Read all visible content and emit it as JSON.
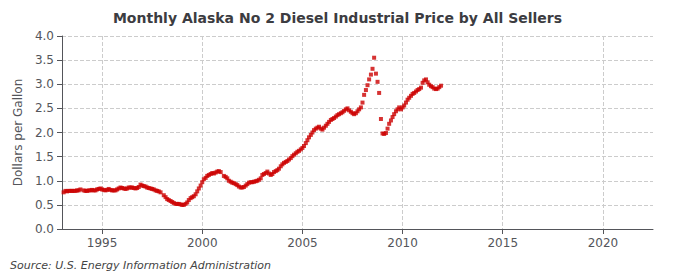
{
  "chart_data": {
    "type": "scatter",
    "title": "Monthly Alaska No 2 Diesel Industrial Price by All Sellers",
    "ylabel": "Dollars per Gallon",
    "annotation": "Source: U.S. Energy Information Administration",
    "color": "#cc0000",
    "marker": "square",
    "grid": true,
    "xlim": [
      1993.0,
      2022.5
    ],
    "xticks": [
      1995,
      2000,
      2005,
      2010,
      2015,
      2020
    ],
    "ylim": [
      0.0,
      4.0
    ],
    "yticks": [
      {
        "value": 0.0,
        "label": "0.0"
      },
      0.5,
      {
        "value": 1.0,
        "label": "1.0"
      },
      1.5,
      {
        "value": 2.0,
        "label": "2.0"
      },
      2.5,
      {
        "value": 3.0,
        "label": "3.0"
      },
      3.5,
      {
        "value": 4.0,
        "label": "4.0"
      }
    ],
    "x": [
      1993.08,
      1993.17,
      1993.25,
      1993.33,
      1993.42,
      1993.5,
      1993.58,
      1993.67,
      1993.75,
      1993.83,
      1993.92,
      1994.08,
      1994.17,
      1994.25,
      1994.33,
      1994.42,
      1994.5,
      1994.58,
      1994.67,
      1994.75,
      1994.83,
      1994.92,
      1995.0,
      1995.08,
      1995.17,
      1995.25,
      1995.33,
      1995.42,
      1995.5,
      1995.58,
      1995.67,
      1995.75,
      1995.83,
      1995.92,
      1996.0,
      1996.08,
      1996.17,
      1996.25,
      1996.33,
      1996.42,
      1996.5,
      1996.58,
      1996.67,
      1996.75,
      1996.83,
      1996.92,
      1997.0,
      1997.08,
      1997.17,
      1997.25,
      1997.33,
      1997.42,
      1997.5,
      1997.58,
      1997.67,
      1997.75,
      1997.83,
      1997.92,
      1998.08,
      1998.17,
      1998.25,
      1998.33,
      1998.42,
      1998.5,
      1998.58,
      1998.67,
      1998.75,
      1998.83,
      1998.92,
      1999.0,
      1999.08,
      1999.17,
      1999.25,
      1999.33,
      1999.42,
      1999.5,
      1999.58,
      1999.67,
      1999.75,
      1999.83,
      1999.92,
      2000.0,
      2000.08,
      2000.17,
      2000.25,
      2000.33,
      2000.42,
      2000.5,
      2000.58,
      2000.67,
      2000.75,
      2000.83,
      2000.92,
      2001.08,
      2001.17,
      2001.25,
      2001.33,
      2001.42,
      2001.5,
      2001.58,
      2001.67,
      2001.75,
      2001.83,
      2001.92,
      2002.0,
      2002.08,
      2002.17,
      2002.25,
      2002.33,
      2002.42,
      2002.5,
      2002.58,
      2002.67,
      2002.75,
      2002.83,
      2002.92,
      2003.0,
      2003.08,
      2003.17,
      2003.25,
      2003.33,
      2003.42,
      2003.5,
      2003.58,
      2003.67,
      2003.75,
      2003.83,
      2003.92,
      2004.0,
      2004.08,
      2004.17,
      2004.25,
      2004.33,
      2004.42,
      2004.5,
      2004.58,
      2004.67,
      2004.75,
      2004.83,
      2004.92,
      2005.0,
      2005.08,
      2005.17,
      2005.25,
      2005.33,
      2005.42,
      2005.5,
      2005.58,
      2005.67,
      2005.75,
      2005.83,
      2005.92,
      2006.0,
      2006.08,
      2006.17,
      2006.25,
      2006.33,
      2006.42,
      2006.5,
      2006.58,
      2006.67,
      2006.75,
      2006.83,
      2006.92,
      2007.0,
      2007.08,
      2007.17,
      2007.25,
      2007.33,
      2007.42,
      2007.5,
      2007.58,
      2007.67,
      2007.75,
      2007.83,
      2007.92,
      2008.0,
      2008.08,
      2008.17,
      2008.25,
      2008.33,
      2008.42,
      2008.5,
      2008.58,
      2008.67,
      2008.75,
      2008.83,
      2008.92,
      2009.0,
      2009.08,
      2009.17,
      2009.25,
      2009.33,
      2009.42,
      2009.5,
      2009.58,
      2009.67,
      2009.75,
      2009.83,
      2009.92,
      2010.0,
      2010.08,
      2010.17,
      2010.25,
      2010.33,
      2010.42,
      2010.5,
      2010.58,
      2010.67,
      2010.75,
      2010.83,
      2010.92,
      2011.0,
      2011.08,
      2011.17,
      2011.25,
      2011.33,
      2011.42,
      2011.5,
      2011.58,
      2011.67,
      2011.75,
      2011.83,
      2011.92
    ],
    "values": [
      0.76,
      0.79,
      0.78,
      0.79,
      0.79,
      0.79,
      0.79,
      0.79,
      0.8,
      0.8,
      0.82,
      0.8,
      0.79,
      0.79,
      0.8,
      0.8,
      0.81,
      0.8,
      0.8,
      0.82,
      0.83,
      0.84,
      0.82,
      0.81,
      0.8,
      0.81,
      0.83,
      0.81,
      0.8,
      0.8,
      0.8,
      0.82,
      0.84,
      0.86,
      0.85,
      0.84,
      0.83,
      0.84,
      0.86,
      0.86,
      0.86,
      0.85,
      0.84,
      0.85,
      0.87,
      0.92,
      0.9,
      0.89,
      0.88,
      0.86,
      0.85,
      0.84,
      0.83,
      0.82,
      0.8,
      0.79,
      0.78,
      0.76,
      0.7,
      0.66,
      0.62,
      0.6,
      0.58,
      0.56,
      0.54,
      0.52,
      0.52,
      0.52,
      0.51,
      0.5,
      0.5,
      0.52,
      0.55,
      0.6,
      0.64,
      0.66,
      0.68,
      0.72,
      0.78,
      0.84,
      0.9,
      0.97,
      1.03,
      1.06,
      1.1,
      1.12,
      1.14,
      1.16,
      1.15,
      1.17,
      1.19,
      1.2,
      1.18,
      1.1,
      1.08,
      1.05,
      1.0,
      0.98,
      0.96,
      0.95,
      0.93,
      0.91,
      0.88,
      0.86,
      0.86,
      0.87,
      0.9,
      0.93,
      0.96,
      0.97,
      0.97,
      0.98,
      0.99,
      1.0,
      1.02,
      1.05,
      1.12,
      1.14,
      1.16,
      1.19,
      1.15,
      1.12,
      1.14,
      1.18,
      1.2,
      1.22,
      1.25,
      1.3,
      1.34,
      1.37,
      1.39,
      1.41,
      1.44,
      1.47,
      1.51,
      1.54,
      1.57,
      1.6,
      1.62,
      1.65,
      1.68,
      1.72,
      1.78,
      1.84,
      1.9,
      1.95,
      2.0,
      2.05,
      2.08,
      2.1,
      2.12,
      2.08,
      2.06,
      2.1,
      2.14,
      2.18,
      2.22,
      2.26,
      2.28,
      2.3,
      2.33,
      2.36,
      2.38,
      2.4,
      2.42,
      2.45,
      2.48,
      2.5,
      2.46,
      2.43,
      2.4,
      2.38,
      2.4,
      2.44,
      2.48,
      2.52,
      2.62,
      2.78,
      2.88,
      2.98,
      3.1,
      3.2,
      3.32,
      3.55,
      3.22,
      3.05,
      2.82,
      2.28,
      1.98,
      1.97,
      1.99,
      2.08,
      2.18,
      2.25,
      2.32,
      2.38,
      2.44,
      2.48,
      2.52,
      2.48,
      2.52,
      2.56,
      2.62,
      2.68,
      2.72,
      2.76,
      2.8,
      2.82,
      2.85,
      2.88,
      2.9,
      2.93,
      3.03,
      3.08,
      3.1,
      3.04,
      2.99,
      2.96,
      2.94,
      2.91,
      2.9,
      2.91,
      2.94,
      2.97
    ]
  }
}
